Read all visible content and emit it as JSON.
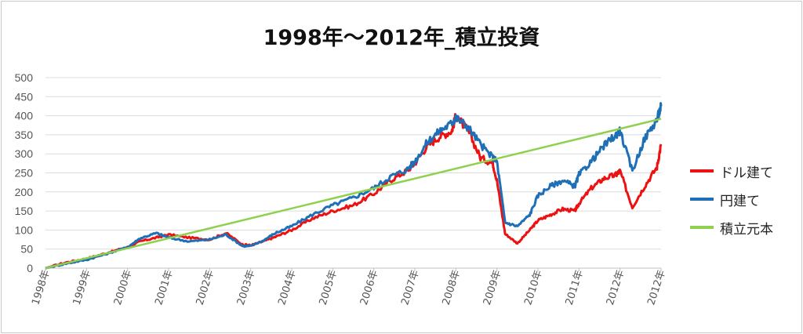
{
  "chart_data": {
    "type": "line",
    "title": "1998年～2012年_積立投資",
    "ylim": [
      0,
      500
    ],
    "yticks": [
      "0",
      "50",
      "100",
      "150",
      "200",
      "250",
      "300",
      "350",
      "400",
      "450",
      "500"
    ],
    "xticks": [
      "1998年",
      "1999年",
      "2000年",
      "2001年",
      "2002年",
      "2003年",
      "2004年",
      "2005年",
      "2006年",
      "2007年",
      "2008年",
      "2009年",
      "2010年",
      "2011年",
      "2012年",
      "2012年"
    ],
    "xlim": [
      1998.0,
      2013.0
    ],
    "grid": true,
    "legend_position": "right",
    "series": [
      {
        "name": "ドル建て",
        "color": "#ee1111",
        "x": [
          1998.0,
          1998.5,
          1999.0,
          1999.5,
          2000.0,
          2000.3,
          2000.7,
          2001.0,
          2001.5,
          2002.0,
          2002.4,
          2002.8,
          2003.0,
          2003.3,
          2003.6,
          2004.0,
          2004.5,
          2005.0,
          2005.5,
          2006.0,
          2006.4,
          2006.8,
          2007.0,
          2007.3,
          2007.6,
          2007.9,
          2008.0,
          2008.3,
          2008.6,
          2008.9,
          2009.0,
          2009.2,
          2009.5,
          2009.8,
          2010.0,
          2010.3,
          2010.6,
          2010.9,
          2011.0,
          2011.3,
          2011.6,
          2011.9,
          2012.0,
          2012.3,
          2012.6,
          2012.9,
          2013.0
        ],
        "y": [
          0,
          15,
          25,
          40,
          55,
          70,
          80,
          88,
          80,
          75,
          92,
          62,
          60,
          70,
          82,
          100,
          130,
          150,
          165,
          195,
          230,
          255,
          275,
          320,
          345,
          360,
          400,
          360,
          290,
          275,
          230,
          90,
          65,
          100,
          125,
          140,
          155,
          150,
          170,
          210,
          235,
          245,
          255,
          160,
          215,
          265,
          325
        ]
      },
      {
        "name": "円建て",
        "color": "#1f6fb6",
        "x": [
          1998.0,
          1998.5,
          1999.0,
          1999.5,
          2000.0,
          2000.3,
          2000.7,
          2001.0,
          2001.5,
          2002.0,
          2002.4,
          2002.8,
          2003.0,
          2003.3,
          2003.6,
          2004.0,
          2004.5,
          2005.0,
          2005.5,
          2006.0,
          2006.4,
          2006.8,
          2007.0,
          2007.3,
          2007.6,
          2007.9,
          2008.0,
          2008.3,
          2008.6,
          2008.9,
          2009.0,
          2009.2,
          2009.5,
          2009.8,
          2010.0,
          2010.3,
          2010.6,
          2010.9,
          2011.0,
          2011.3,
          2011.6,
          2011.9,
          2012.0,
          2012.3,
          2012.6,
          2012.9,
          2013.0
        ],
        "y": [
          0,
          12,
          22,
          38,
          55,
          78,
          92,
          80,
          70,
          75,
          88,
          58,
          58,
          72,
          92,
          110,
          140,
          165,
          185,
          210,
          240,
          258,
          280,
          330,
          360,
          380,
          395,
          370,
          325,
          290,
          280,
          120,
          110,
          140,
          190,
          215,
          230,
          215,
          245,
          280,
          320,
          350,
          360,
          255,
          340,
          390,
          425
        ]
      },
      {
        "name": "積立元本",
        "color": "#8fd14f",
        "x": [
          1998.0,
          2013.0
        ],
        "y": [
          0,
          392
        ]
      }
    ]
  }
}
